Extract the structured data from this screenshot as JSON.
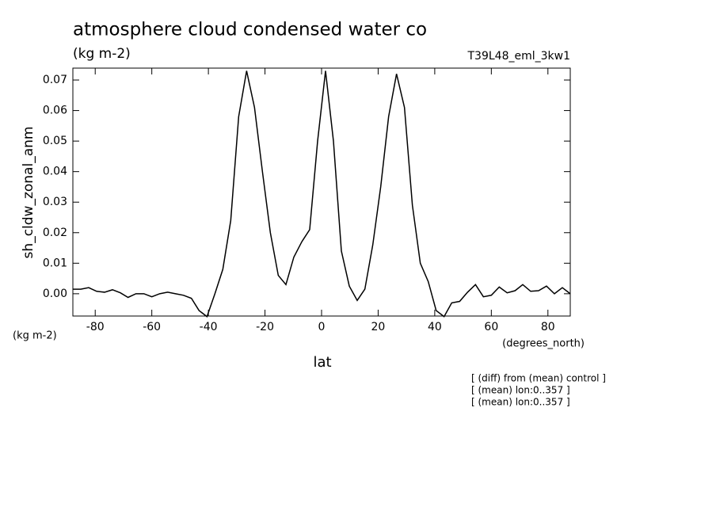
{
  "chart_data": {
    "type": "line",
    "title": "atmosphere cloud condensed water co",
    "subtitle": "(kg m-2)",
    "run_label": "T39L48_eml_3kw1",
    "y_label": "sh_cldw_zonal_anm",
    "y_units": "(kg m-2)",
    "x_units": "(degrees_north)",
    "x_label": "lat",
    "notes": [
      "[ (diff) from (mean) control ]",
      "[ (mean) lon:0..357 ]",
      "[ (mean) lon:0..357 ]"
    ],
    "x": [
      -87.9,
      -85.1,
      -82.3,
      -79.5,
      -76.7,
      -73.9,
      -71.1,
      -68.4,
      -65.6,
      -62.8,
      -60.0,
      -57.2,
      -54.4,
      -51.6,
      -48.8,
      -46.0,
      -43.3,
      -40.5,
      -37.7,
      -34.9,
      -32.1,
      -29.3,
      -26.5,
      -23.7,
      -20.9,
      -18.1,
      -15.3,
      -12.6,
      -9.8,
      -7.0,
      -4.2,
      -1.4,
      1.4,
      4.2,
      7.0,
      9.8,
      12.6,
      15.3,
      18.1,
      20.9,
      23.7,
      26.5,
      29.3,
      32.1,
      34.9,
      37.7,
      40.5,
      43.3,
      46.0,
      48.8,
      51.6,
      54.4,
      57.2,
      60.0,
      62.8,
      65.6,
      68.4,
      71.1,
      73.9,
      76.7,
      79.5,
      82.3,
      85.1,
      87.9
    ],
    "series": [
      {
        "color": "#000000",
        "values": [
          0.0015,
          0.0015,
          0.002,
          0.0008,
          0.0005,
          0.0013,
          0.0003,
          -0.0012,
          0.0,
          0.0,
          -0.001,
          0.0,
          0.0005,
          0.0,
          -0.0005,
          -0.0015,
          -0.0055,
          -0.0075,
          0.0,
          0.008,
          0.024,
          0.058,
          0.073,
          0.061,
          0.04,
          0.02,
          0.006,
          0.003,
          0.012,
          0.017,
          0.021,
          0.05,
          0.073,
          0.05,
          0.014,
          0.0025,
          -0.0022,
          0.0015,
          0.016,
          0.035,
          0.058,
          0.072,
          0.061,
          0.029,
          0.01,
          0.004,
          -0.0055,
          -0.0075,
          -0.003,
          -0.0025,
          0.0005,
          0.003,
          -0.001,
          -0.0005,
          0.0022,
          0.0003,
          0.001,
          0.003,
          0.0008,
          0.001,
          0.0025,
          0.0,
          0.002,
          0.0
        ]
      }
    ],
    "xlim": [
      -87.9,
      87.9
    ],
    "ylim": [
      -0.0073,
      0.0739
    ],
    "xticks": [
      -80,
      -60,
      -40,
      -20,
      0,
      20,
      40,
      60,
      80
    ],
    "yticks": [
      {
        "value": 0,
        "label": "0.00"
      },
      0.01,
      0.02,
      0.03,
      0.04,
      0.05,
      0.06,
      0.07
    ]
  }
}
